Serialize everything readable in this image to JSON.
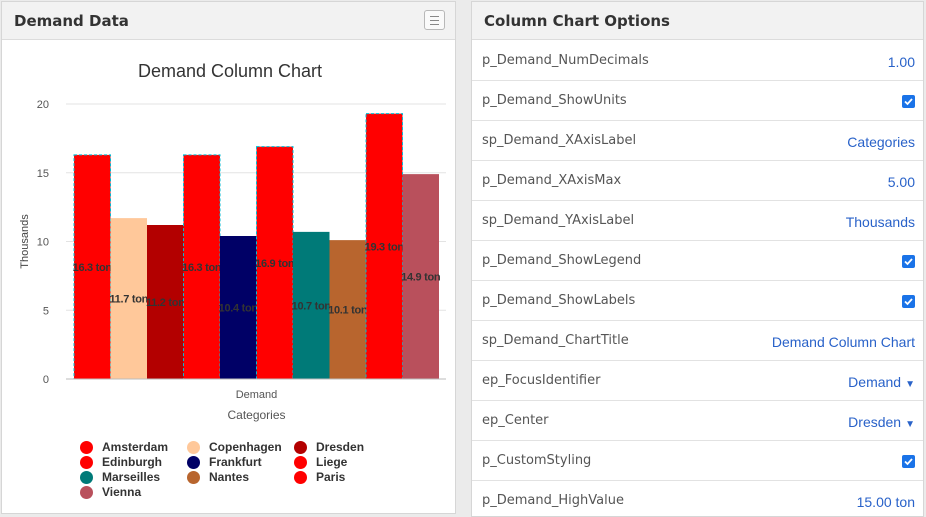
{
  "left_panel": {
    "title": "Demand Data",
    "menu_icon": "hamburger-icon"
  },
  "chart_data": {
    "type": "bar",
    "title": "Demand Column Chart",
    "xlabel": "Categories",
    "ylabel": "Thousands",
    "categories": [
      "Demand"
    ],
    "ylim": [
      0,
      20
    ],
    "yticks": [
      "0",
      "5",
      "10",
      "15",
      "20"
    ],
    "series": [
      {
        "name": "Amsterdam",
        "values": [
          16.3
        ],
        "label": "16.3 ton",
        "color": "#ff0000",
        "selected": true
      },
      {
        "name": "Copenhagen",
        "values": [
          11.7
        ],
        "label": "11.7 ton",
        "color": "#ffc89a",
        "selected": false
      },
      {
        "name": "Dresden",
        "values": [
          11.2
        ],
        "label": "11.2 ton",
        "color": "#b30000",
        "selected": false
      },
      {
        "name": "Edinburgh",
        "values": [
          16.3
        ],
        "label": "16.3 ton",
        "color": "#ff0000",
        "selected": true
      },
      {
        "name": "Frankfurt",
        "values": [
          10.4
        ],
        "label": "10.4 ton",
        "color": "#000066",
        "selected": false
      },
      {
        "name": "Liege",
        "values": [
          16.9
        ],
        "label": "16.9 ton",
        "color": "#ff0000",
        "selected": true
      },
      {
        "name": "Marseilles",
        "values": [
          10.7
        ],
        "label": "10.7 ton",
        "color": "#007a78",
        "selected": false
      },
      {
        "name": "Nantes",
        "values": [
          10.1
        ],
        "label": "10.1 ton",
        "color": "#b8652e",
        "selected": false
      },
      {
        "name": "Paris",
        "values": [
          19.3
        ],
        "label": "19.3 ton",
        "color": "#ff0000",
        "selected": true
      },
      {
        "name": "Vienna",
        "values": [
          14.9
        ],
        "label": "14.9 ton",
        "color": "#b9505c",
        "selected": false
      }
    ],
    "legend": "bottom",
    "grid": true
  },
  "right_panel": {
    "title": "Column Chart Options",
    "rows": [
      {
        "name": "p_Demand_NumDecimals",
        "kind": "text",
        "value": "1.00"
      },
      {
        "name": "p_Demand_ShowUnits",
        "kind": "check",
        "value": "checked"
      },
      {
        "name": "sp_Demand_XAxisLabel",
        "kind": "text",
        "value": "Categories"
      },
      {
        "name": "p_Demand_XAxisMax",
        "kind": "text",
        "value": "5.00"
      },
      {
        "name": "sp_Demand_YAxisLabel",
        "kind": "text",
        "value": "Thousands"
      },
      {
        "name": "p_Demand_ShowLegend",
        "kind": "check",
        "value": "checked"
      },
      {
        "name": "p_Demand_ShowLabels",
        "kind": "check",
        "value": "checked"
      },
      {
        "name": "sp_Demand_ChartTitle",
        "kind": "text",
        "value": "Demand Column Chart"
      },
      {
        "name": "ep_FocusIdentifier",
        "kind": "select",
        "value": "Demand"
      },
      {
        "name": "ep_Center",
        "kind": "select",
        "value": "Dresden"
      },
      {
        "name": "p_CustomStyling",
        "kind": "check",
        "value": "checked"
      },
      {
        "name": "p_Demand_HighValue",
        "kind": "text",
        "value": "15.00 ton"
      }
    ]
  },
  "colors": {
    "accent": "#2962c9",
    "checkbox": "#1a73e8",
    "selection_outline": "#00bcd4"
  }
}
